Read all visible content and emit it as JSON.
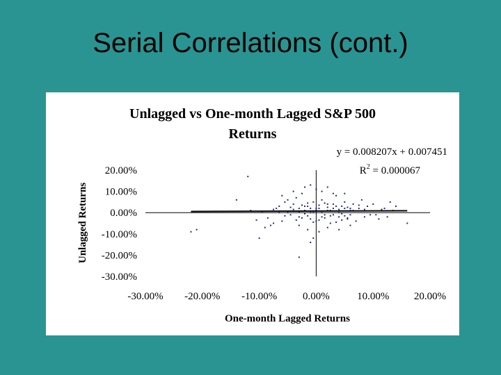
{
  "slide": {
    "title": "Serial Correlations (cont.)"
  },
  "chart_data": {
    "type": "scatter",
    "title_line1": "Unlagged vs One-month Lagged S&P 500",
    "title_line2": "Returns",
    "xlabel": "One-month Lagged Returns",
    "ylabel": "Unlagged Returns",
    "xlim": [
      -0.3,
      0.2
    ],
    "ylim": [
      -0.3,
      0.2
    ],
    "x_ticks": [
      "-30.00%",
      "-20.00%",
      "-10.00%",
      "0.00%",
      "10.00%",
      "20.00%"
    ],
    "y_ticks": [
      "20.00%",
      "10.00%",
      "0.00%",
      "-10.00%",
      "-20.00%",
      "-30.00%"
    ],
    "equation": "y = 0.008207x + 0.007451",
    "r2_prefix": "R",
    "r2_sup": "2",
    "r2_suffix": " = 0.000067",
    "trendline": {
      "slope": 0.008207,
      "intercept": 0.007451,
      "x_range": [
        -0.22,
        0.16
      ]
    },
    "point_color": "#1f2a7a",
    "series": [
      {
        "name": "",
        "points": [
          [
            -0.22,
            -0.09
          ],
          [
            -0.14,
            0.06
          ],
          [
            -0.12,
            0.17
          ],
          [
            -0.1,
            -0.12
          ],
          [
            -0.21,
            -0.08
          ],
          [
            -0.09,
            -0.07
          ],
          [
            -0.08,
            -0.06
          ],
          [
            -0.075,
            -0.05
          ],
          [
            -0.07,
            0.02
          ],
          [
            -0.065,
            0.03
          ],
          [
            -0.06,
            -0.04
          ],
          [
            -0.055,
            0.05
          ],
          [
            -0.05,
            0.06
          ],
          [
            -0.045,
            -0.01
          ],
          [
            -0.04,
            0.04
          ],
          [
            -0.035,
            0.07
          ],
          [
            -0.03,
            -0.02
          ],
          [
            -0.025,
            0.09
          ],
          [
            -0.02,
            0.01
          ],
          [
            -0.015,
            0.03
          ],
          [
            -0.01,
            -0.03
          ],
          [
            -0.005,
            0.05
          ],
          [
            0.0,
            -0.04
          ],
          [
            0.005,
            0.02
          ],
          [
            0.01,
            0.06
          ],
          [
            0.015,
            -0.01
          ],
          [
            0.02,
            0.04
          ],
          [
            0.025,
            -0.05
          ],
          [
            0.03,
            0.02
          ],
          [
            0.035,
            0.08
          ],
          [
            0.04,
            -0.02
          ],
          [
            0.045,
            0.03
          ],
          [
            0.05,
            0.05
          ],
          [
            0.055,
            -0.03
          ],
          [
            0.06,
            0.01
          ],
          [
            0.065,
            0.04
          ],
          [
            0.07,
            -0.04
          ],
          [
            0.075,
            0.02
          ],
          [
            0.08,
            0.06
          ],
          [
            0.085,
            -0.02
          ],
          [
            0.09,
            0.03
          ],
          [
            0.095,
            -0.01
          ],
          [
            0.1,
            0.04
          ],
          [
            0.11,
            -0.03
          ],
          [
            0.12,
            0.02
          ],
          [
            0.13,
            0.05
          ],
          [
            0.14,
            0.03
          ],
          [
            0.16,
            -0.05
          ],
          [
            -0.03,
            -0.21
          ],
          [
            -0.01,
            -0.14
          ],
          [
            -0.005,
            -0.12
          ],
          [
            -0.02,
            0.12
          ],
          [
            -0.01,
            0.13
          ],
          [
            0.0,
            0.11
          ],
          [
            0.01,
            0.1
          ],
          [
            0.02,
            0.12
          ],
          [
            -0.04,
            0.1
          ],
          [
            0.03,
            0.09
          ],
          [
            -0.06,
            0.08
          ],
          [
            0.05,
            0.09
          ],
          [
            -0.015,
            -0.08
          ],
          [
            0.005,
            -0.09
          ],
          [
            0.02,
            -0.07
          ],
          [
            -0.03,
            -0.06
          ],
          [
            0.04,
            -0.08
          ],
          [
            0.06,
            -0.06
          ],
          [
            -0.05,
            0.0
          ],
          [
            -0.04,
            0.015
          ],
          [
            -0.03,
            0.005
          ],
          [
            -0.02,
            -0.005
          ],
          [
            -0.01,
            0.02
          ],
          [
            0.0,
            0.01
          ],
          [
            0.01,
            -0.02
          ],
          [
            0.02,
            0.025
          ],
          [
            0.03,
            -0.01
          ],
          [
            0.04,
            0.015
          ],
          [
            0.05,
            -0.015
          ],
          [
            0.06,
            0.02
          ],
          [
            -0.025,
            0.035
          ],
          [
            -0.015,
            0.045
          ],
          [
            -0.005,
            0.0
          ],
          [
            0.005,
            0.035
          ],
          [
            0.015,
            0.045
          ],
          [
            0.025,
            0.01
          ],
          [
            0.035,
            0.03
          ],
          [
            0.045,
            -0.005
          ],
          [
            0.055,
            0.025
          ],
          [
            0.065,
            0.01
          ],
          [
            0.075,
            0.035
          ],
          [
            0.085,
            0.015
          ],
          [
            -0.035,
            -0.035
          ],
          [
            -0.025,
            -0.025
          ],
          [
            -0.015,
            -0.015
          ],
          [
            -0.005,
            -0.045
          ],
          [
            0.005,
            -0.035
          ],
          [
            0.015,
            -0.025
          ],
          [
            0.025,
            -0.015
          ],
          [
            0.035,
            -0.045
          ],
          [
            0.045,
            -0.035
          ],
          [
            0.055,
            -0.025
          ],
          [
            -0.045,
            0.025
          ],
          [
            -0.055,
            -0.015
          ],
          [
            -0.065,
            0.0
          ],
          [
            -0.075,
            0.015
          ],
          [
            -0.085,
            -0.025
          ],
          [
            -0.095,
            0.005
          ],
          [
            -0.105,
            -0.035
          ],
          [
            -0.115,
            0.01
          ],
          [
            0.105,
            -0.01
          ],
          [
            0.115,
            0.015
          ],
          [
            0.125,
            -0.02
          ],
          [
            0.135,
            0.01
          ],
          [
            0.0,
            0.02
          ],
          [
            0.01,
            0.0
          ],
          [
            0.02,
            0.01
          ],
          [
            0.03,
            0.04
          ],
          [
            -0.01,
            0.0
          ],
          [
            -0.02,
            0.03
          ],
          [
            -0.03,
            0.02
          ],
          [
            0.04,
            0.0
          ],
          [
            0.05,
            0.02
          ],
          [
            0.06,
            -0.01
          ]
        ]
      }
    ]
  }
}
